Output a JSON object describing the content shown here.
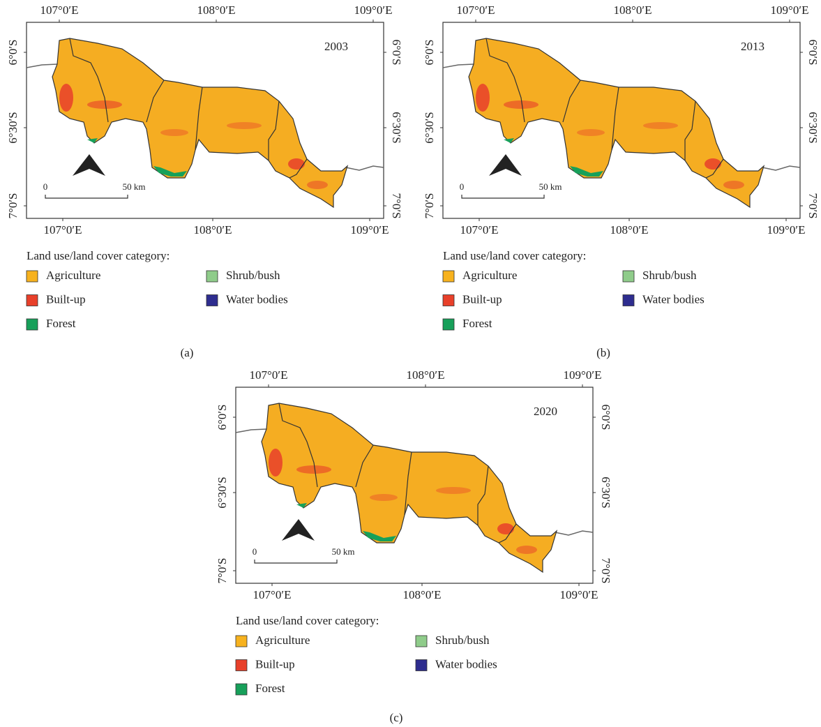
{
  "panels": [
    {
      "year": "2003",
      "top_ticks": [
        "107°0′E",
        "108°0′E",
        "109°0′E"
      ],
      "bottom_ticks": [
        "107°0′E",
        "108°0′E",
        "109°0′E"
      ],
      "left_ticks": [
        "6°0′S",
        "6°30′S",
        "7°0′S"
      ],
      "right_ticks": [
        "6°0′S",
        "6°30′S",
        "7°0′S"
      ],
      "scale_bar": {
        "start": "0",
        "end": "50 km"
      },
      "legend": {
        "title": "Land use/land cover category:",
        "items": [
          {
            "label": "Agriculture",
            "color": "#f7b21e"
          },
          {
            "label": "Built-up",
            "color": "#e8402a"
          },
          {
            "label": "Forest",
            "color": "#17a05a"
          },
          {
            "label": "Shrub/bush",
            "color": "#8fcc8a"
          },
          {
            "label": "Water bodies",
            "color": "#2e2d8f"
          }
        ]
      },
      "caption": "(a)"
    },
    {
      "year": "2013",
      "top_ticks": [
        "107°0′E",
        "108°0′E",
        "109°0′E"
      ],
      "bottom_ticks": [
        "107°0′E",
        "108°0′E",
        "109°0′E"
      ],
      "left_ticks": [
        "6°0′S",
        "6°30′S",
        "7°0′S"
      ],
      "right_ticks": [
        "6°0′S",
        "6°30′S",
        "7°0′S"
      ],
      "scale_bar": {
        "start": "0",
        "end": "50 km"
      },
      "legend": {
        "title": "Land use/land cover category:",
        "items": [
          {
            "label": "Agriculture",
            "color": "#f7b21e"
          },
          {
            "label": "Built-up",
            "color": "#e8402a"
          },
          {
            "label": "Forest",
            "color": "#17a05a"
          },
          {
            "label": "Shrub/bush",
            "color": "#8fcc8a"
          },
          {
            "label": "Water bodies",
            "color": "#2e2d8f"
          }
        ]
      },
      "caption": "(b)"
    },
    {
      "year": "2020",
      "top_ticks": [
        "107°0′E",
        "108°0′E",
        "109°0′E"
      ],
      "bottom_ticks": [
        "107°0′E",
        "108°0′E",
        "109°0′E"
      ],
      "left_ticks": [
        "6°0′S",
        "6°30′S",
        "7°0′S"
      ],
      "right_ticks": [
        "6°0′S",
        "6°30′S",
        "7°0′S"
      ],
      "scale_bar": {
        "start": "0",
        "end": "50 km"
      },
      "legend": {
        "title": "Land use/land cover category:",
        "items": [
          {
            "label": "Agriculture",
            "color": "#f7b21e"
          },
          {
            "label": "Built-up",
            "color": "#e8402a"
          },
          {
            "label": "Forest",
            "color": "#17a05a"
          },
          {
            "label": "Shrub/bush",
            "color": "#8fcc8a"
          },
          {
            "label": "Water bodies",
            "color": "#2e2d8f"
          }
        ]
      },
      "caption": "(c)"
    }
  ]
}
